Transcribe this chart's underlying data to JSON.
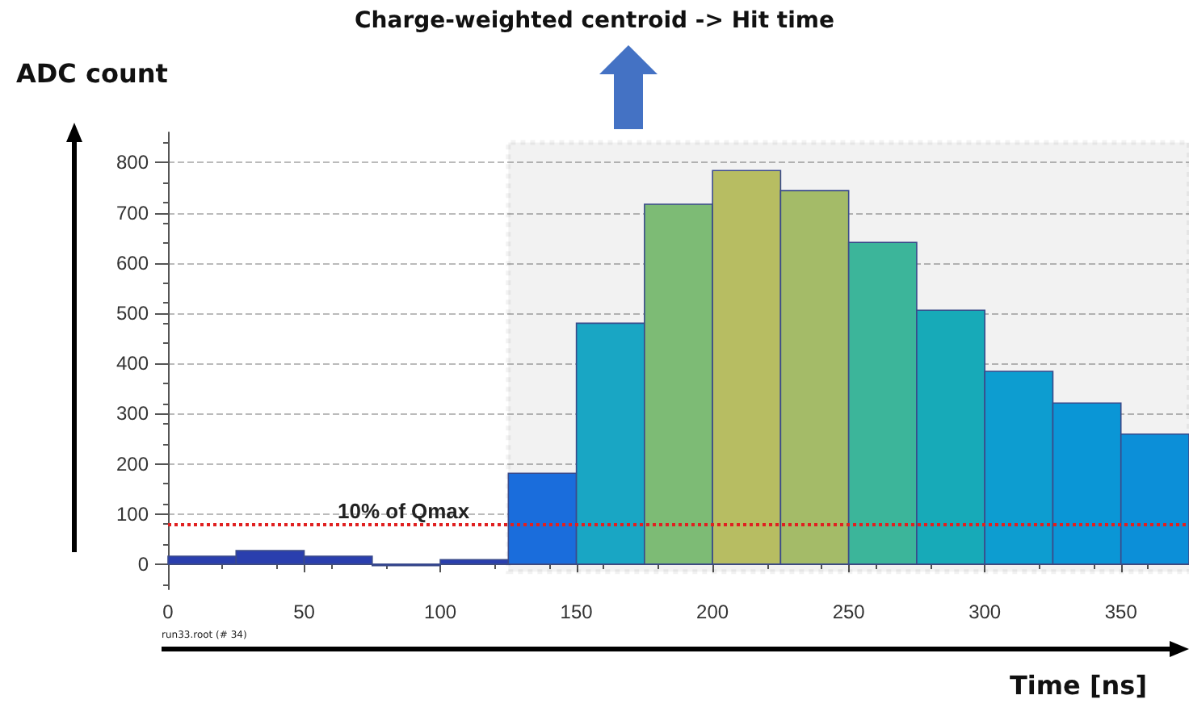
{
  "chart_data": {
    "type": "histogram",
    "title": "Charge-weighted centroid -> Hit time",
    "xlabel": "Time [ns]",
    "ylabel": "ADC count",
    "bins": [
      0,
      25,
      50,
      75,
      100,
      125,
      150,
      175,
      200,
      225,
      250,
      275,
      300,
      325,
      350,
      375
    ],
    "values": [
      16,
      27,
      16,
      -3,
      9,
      181,
      480,
      717,
      784,
      744,
      641,
      506,
      384,
      321,
      259
    ],
    "colors": [
      "#2a3fae",
      "#2a3fae",
      "#2a3fae",
      "#2a3fae",
      "#2a3fae",
      "#1a6ddc",
      "#19a6c4",
      "#7dbb75",
      "#b7bd62",
      "#a4bb68",
      "#3cb59a",
      "#17aab8",
      "#0d9dd0",
      "#0a96d6",
      "#0c8fd8"
    ],
    "xlim": [
      0,
      375
    ],
    "xticks": [
      0,
      50,
      100,
      150,
      200,
      250,
      300,
      350
    ],
    "ylim": [
      -50,
      860
    ],
    "yticks": [
      0,
      100,
      200,
      300,
      400,
      500,
      600,
      700,
      800
    ],
    "grid": "y",
    "ref_lines": [
      {
        "axis": "y",
        "value": 78,
        "label": "10% of Qmax",
        "color": "#e02020",
        "line_style": "dotted"
      }
    ],
    "bands": [
      {
        "axis": "x",
        "from": 125,
        "to": 375,
        "color": "#000000"
      }
    ],
    "annotations": [
      "run33.root (# 34)"
    ]
  }
}
